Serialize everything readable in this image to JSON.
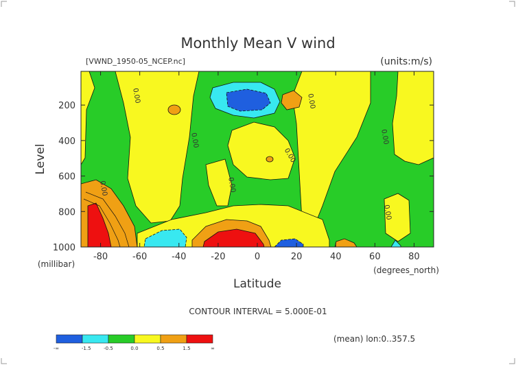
{
  "chart_data": {
    "type": "heatmap",
    "title": "Monthly Mean V wind",
    "dataset": "[VWND_1950-05_NCEP.nc]",
    "units": "(units:m/s)",
    "ylabel": "Level",
    "yunits": "(millibar)",
    "xlabel": "Latitude",
    "xunits": "(degrees_north)",
    "xlim": [
      -90,
      90
    ],
    "ylim": [
      1000,
      10
    ],
    "xticks": [
      -80,
      -60,
      -40,
      -20,
      0,
      20,
      40,
      60,
      80
    ],
    "xtick_labels": [
      "-80",
      "-60",
      "-40",
      "-20",
      "0",
      "20",
      "40",
      "60",
      "80"
    ],
    "yticks": [
      1000,
      800,
      600,
      400,
      200
    ],
    "ytick_labels": [
      "1000",
      "800",
      "600",
      "400",
      "200"
    ],
    "contour_interval_text": "CONTOUR INTERVAL = 5.000E-01",
    "contour_label": "0.00",
    "footer": "(mean) lon:0..357.5",
    "levels": [
      {
        "color": "#1f5fdf",
        "label": "-∞"
      },
      {
        "color": "#38e8f0",
        "label": "-1.5"
      },
      {
        "color": "#38e8f0",
        "label": "-0.5"
      },
      {
        "color": "#28cc28",
        "label": "0.0"
      },
      {
        "color": "#f8f820",
        "label": "0.5"
      },
      {
        "color": "#f0a014",
        "label": "1.5"
      },
      {
        "color": "#ee1010",
        "label": "∞"
      }
    ],
    "regions": [
      {
        "level": "positive",
        "desc": "yellow",
        "x": [
          -60,
          -42
        ],
        "y": [
          120,
          850
        ]
      },
      {
        "level": "positive",
        "desc": "yellow",
        "x": [
          -30,
          -10
        ],
        "y": [
          300,
          700
        ]
      },
      {
        "level": "strong_negative",
        "desc": "blue",
        "x": [
          -15,
          10
        ],
        "y": [
          130,
          250
        ]
      },
      {
        "level": "strong_positive",
        "desc": "red",
        "x": [
          -20,
          0
        ],
        "y": [
          920,
          1000
        ]
      },
      {
        "level": "strong_positive",
        "desc": "red",
        "x": [
          -90,
          -75
        ],
        "y": [
          750,
          1000
        ]
      }
    ]
  }
}
